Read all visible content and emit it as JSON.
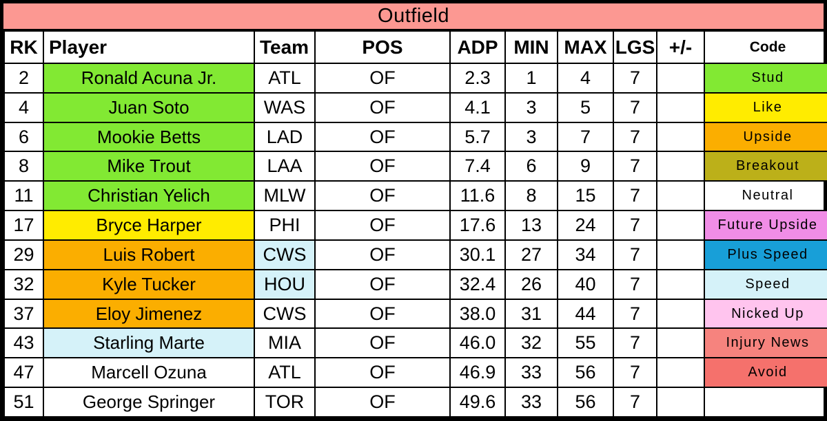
{
  "chart_data": {
    "type": "table",
    "title": "Outfield",
    "title_bg": "#FC9892",
    "columns": [
      {
        "key": "rk",
        "label": "RK",
        "align": "center"
      },
      {
        "key": "player",
        "label": "Player",
        "align": "left"
      },
      {
        "key": "team",
        "label": "Team",
        "align": "left"
      },
      {
        "key": "pos",
        "label": "POS",
        "align": "center"
      },
      {
        "key": "adp",
        "label": "ADP",
        "align": "center"
      },
      {
        "key": "min",
        "label": "MIN",
        "align": "center"
      },
      {
        "key": "max",
        "label": "MAX",
        "align": "center"
      },
      {
        "key": "lgs",
        "label": "LGS",
        "align": "center"
      },
      {
        "key": "plus_minus",
        "label": "+/-",
        "align": "center"
      },
      {
        "key": "code",
        "label": "Code",
        "align": "center"
      }
    ],
    "rows": [
      {
        "rk": "2",
        "player": "Ronald Acuna Jr.",
        "team": "ATL",
        "pos": "OF",
        "adp": "2.3",
        "min": "1",
        "max": "4",
        "lgs": "7",
        "plus_minus": "",
        "code": "Stud",
        "player_bg": "green",
        "code_bg": "green"
      },
      {
        "rk": "4",
        "player": "Juan Soto",
        "team": "WAS",
        "pos": "OF",
        "adp": "4.1",
        "min": "3",
        "max": "5",
        "lgs": "7",
        "plus_minus": "",
        "code": "Like",
        "player_bg": "green",
        "code_bg": "yellow"
      },
      {
        "rk": "6",
        "player": "Mookie Betts",
        "team": "LAD",
        "pos": "OF",
        "adp": "5.7",
        "min": "3",
        "max": "7",
        "lgs": "7",
        "plus_minus": "",
        "code": "Upside",
        "player_bg": "green",
        "code_bg": "orange"
      },
      {
        "rk": "8",
        "player": "Mike Trout",
        "team": "LAA",
        "pos": "OF",
        "adp": "7.4",
        "min": "6",
        "max": "9",
        "lgs": "7",
        "plus_minus": "",
        "code": "Breakout",
        "player_bg": "green",
        "code_bg": "olive"
      },
      {
        "rk": "11",
        "player": "Christian Yelich",
        "team": "MLW",
        "pos": "OF",
        "adp": "11.6",
        "min": "8",
        "max": "15",
        "lgs": "7",
        "plus_minus": "",
        "code": "Neutral",
        "player_bg": "green"
      },
      {
        "rk": "17",
        "player": "Bryce Harper",
        "team": "PHI",
        "pos": "OF",
        "adp": "17.6",
        "min": "13",
        "max": "24",
        "lgs": "7",
        "plus_minus": "",
        "code": "Future Upside",
        "player_bg": "yellow",
        "code_bg": "violet"
      },
      {
        "rk": "29",
        "player": "Luis Robert",
        "team": "CWS",
        "pos": "OF",
        "adp": "30.1",
        "min": "27",
        "max": "34",
        "lgs": "7",
        "plus_minus": "",
        "code": "Plus Speed",
        "player_bg": "orange",
        "team_bg": "cyan",
        "code_bg": "blue"
      },
      {
        "rk": "32",
        "player": "Kyle Tucker",
        "team": "HOU",
        "pos": "OF",
        "adp": "32.4",
        "min": "26",
        "max": "40",
        "lgs": "7",
        "plus_minus": "",
        "code": "Speed",
        "player_bg": "orange",
        "team_bg": "cyan",
        "code_bg": "cyan"
      },
      {
        "rk": "37",
        "player": "Eloy Jimenez",
        "team": "CWS",
        "pos": "OF",
        "adp": "38.0",
        "min": "31",
        "max": "44",
        "lgs": "7",
        "plus_minus": "",
        "code": "Nicked Up",
        "player_bg": "orange",
        "code_bg": "pink"
      },
      {
        "rk": "43",
        "player": "Starling Marte",
        "team": "MIA",
        "pos": "OF",
        "adp": "46.0",
        "min": "32",
        "max": "55",
        "lgs": "7",
        "plus_minus": "",
        "code": "Injury News",
        "player_bg": "cyan",
        "code_bg": "salmon_light"
      },
      {
        "rk": "47",
        "player": "Marcell Ozuna",
        "team": "ATL",
        "pos": "OF",
        "adp": "46.9",
        "min": "33",
        "max": "56",
        "lgs": "7",
        "plus_minus": "",
        "code": "Avoid",
        "code_bg": "salmon"
      },
      {
        "rk": "51",
        "player": "George Springer",
        "team": "TOR",
        "pos": "OF",
        "adp": "49.6",
        "min": "33",
        "max": "56",
        "lgs": "7",
        "plus_minus": "",
        "code": ""
      }
    ],
    "color_key": {
      "green": "#82E933",
      "yellow": "#FFEC00",
      "orange": "#FBAE00",
      "olive": "#BCB019",
      "violet": "#F08DE6",
      "blue": "#189FD8",
      "cyan": "#D5F2F9",
      "pink": "#FFC4EE",
      "salmon_light": "#F6837E",
      "salmon": "#F5716C",
      "white": "#FFFFFF"
    }
  }
}
